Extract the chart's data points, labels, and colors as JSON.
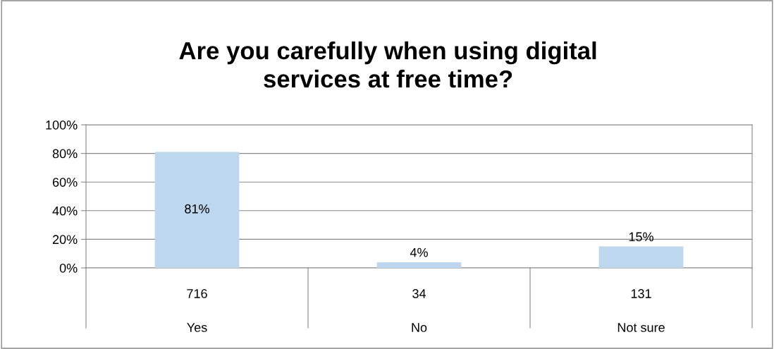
{
  "chart_data": {
    "type": "bar",
    "title": "Are you carefully when using digital\nservices at free time?",
    "categories": [
      "Yes",
      "No",
      "Not sure"
    ],
    "values": [
      81,
      4,
      15
    ],
    "color": "#bdd7ee",
    "value_labels": [
      "81%",
      "4%",
      "15%"
    ],
    "annotations": [
      "716",
      "34",
      "131"
    ],
    "ylim": [
      0,
      100
    ],
    "yticks": [
      {
        "value": 0,
        "label": "0%"
      },
      {
        "value": 20,
        "label": "20%"
      },
      {
        "value": 40,
        "label": "40%"
      },
      {
        "value": 60,
        "label": "60%"
      },
      {
        "value": 80,
        "label": "80%"
      },
      {
        "value": 100,
        "label": "100%"
      }
    ],
    "grid": "y"
  }
}
